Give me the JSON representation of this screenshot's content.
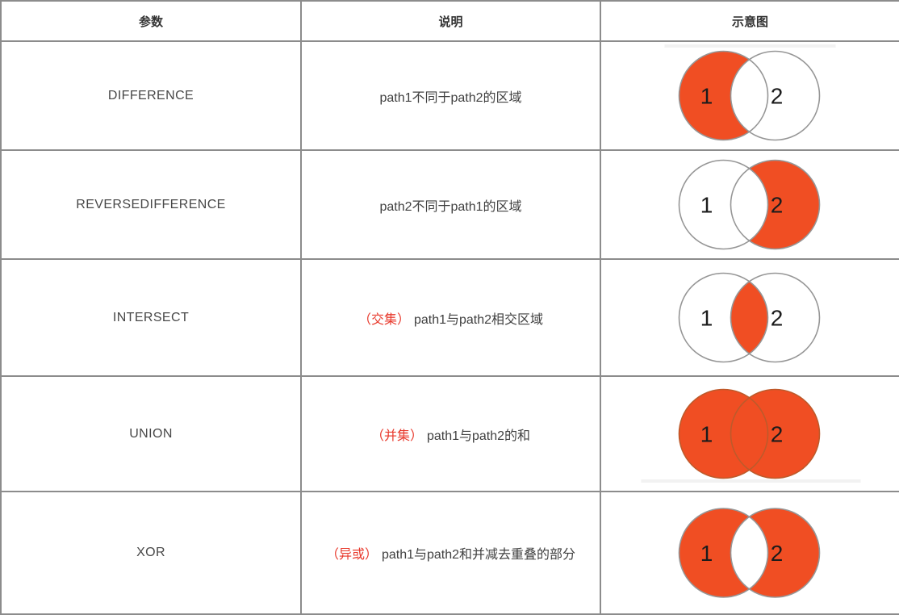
{
  "colors": {
    "orange": "#f04e23",
    "red": "#e8392c",
    "border": "#8c8c8c",
    "circle_stroke": "#969696",
    "union_stroke": "#bd5a2b",
    "digit_ink": "#1c1c1c"
  },
  "header": {
    "param": "参数",
    "desc": "说明",
    "diagram": "示意图"
  },
  "rows": [
    {
      "param": "DIFFERENCE",
      "desc_prefix": "",
      "desc": "path1不同于path2的区域",
      "venn": "difference",
      "label1": "1",
      "label2": "2",
      "artifact": "top"
    },
    {
      "param": "REVERSEDIFFERENCE",
      "desc_prefix": "",
      "desc": "path2不同于path1的区域",
      "venn": "reverse-difference",
      "label1": "1",
      "label2": "2",
      "artifact": ""
    },
    {
      "param": "INTERSECT",
      "desc_prefix": "（交集）",
      "desc": "path1与path2相交区域",
      "venn": "intersect",
      "label1": "1",
      "label2": "2",
      "artifact": ""
    },
    {
      "param": "UNION",
      "desc_prefix": "（并集）",
      "desc": "path1与path2的和",
      "venn": "union",
      "label1": "1",
      "label2": "2",
      "artifact": "bottom"
    },
    {
      "param": "XOR",
      "desc_prefix": "（异或）",
      "desc": "path1与path2和并减去重叠的部分",
      "venn": "xor",
      "label1": "1",
      "label2": "2",
      "artifact": ""
    }
  ]
}
